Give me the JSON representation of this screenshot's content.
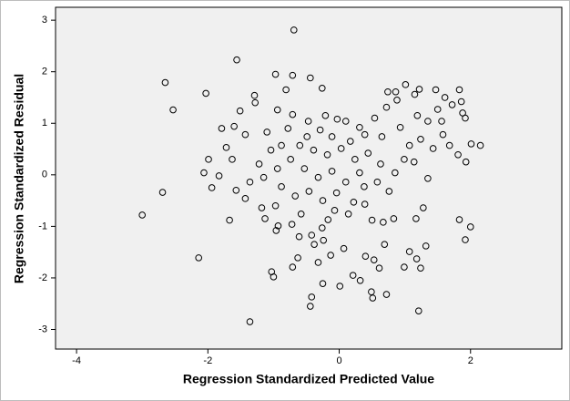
{
  "chart_data": {
    "type": "scatter",
    "x_label": "Regression Standardized Predicted Value",
    "y_label": "Regression Standardized Residual",
    "xlim": [
      -4.32,
      3.39
    ],
    "ylim": [
      -3.38,
      3.25
    ],
    "xticks": [
      -4,
      -2,
      0,
      2
    ],
    "yticks": [
      -3,
      -2,
      -1,
      0,
      1,
      2,
      3
    ],
    "grid": false,
    "background": "#f0f0f0",
    "color": "#000000",
    "x": [
      -0.69,
      -1.56,
      -2.65,
      -2.53,
      -2.03,
      -3.0,
      -2.69,
      -2.14,
      -1.36,
      -0.97,
      -0.71,
      -0.44,
      -0.26,
      -0.81,
      1.01,
      1.22,
      1.47,
      1.83,
      0.86,
      1.86,
      1.61,
      1.72,
      1.5,
      1.88,
      1.15,
      1.35,
      1.56,
      1.92,
      1.19,
      0.74,
      0.88,
      -1.29,
      -1.28,
      -1.51,
      -1.79,
      -0.94,
      -0.71,
      -0.47,
      -0.21,
      -0.03,
      0.1,
      0.54,
      0.72,
      0.39,
      -0.29,
      -0.78,
      -1.1,
      -1.43,
      -1.6,
      -1.72,
      1.58,
      1.68,
      1.24,
      1.43,
      1.81,
      2.01,
      2.15,
      1.93,
      1.14,
      1.35,
      0.99,
      0.85,
      1.17,
      1.28,
      1.83,
      2.0,
      1.92,
      1.32,
      1.07,
      1.18,
      1.24,
      0.69,
      0.99,
      0.53,
      0.07,
      0.21,
      0.4,
      0.61,
      0.32,
      0.49,
      0.51,
      1.21,
      0.72,
      0.83,
      -0.42,
      -0.44,
      -0.25,
      -0.38,
      -0.13,
      0.01,
      -0.32,
      -0.63,
      -0.71,
      -1.03,
      -1.0,
      -1.67,
      -1.13,
      -0.93,
      -0.72,
      -0.58,
      -0.61,
      -0.42,
      -0.24,
      -0.26,
      -0.17,
      -0.07,
      0.14,
      0.22,
      0.39,
      0.5,
      0.67,
      -0.96,
      -0.97,
      -1.18,
      -1.43,
      -1.94,
      -1.83,
      -1.57,
      -1.63,
      -0.6,
      -0.39,
      -0.18,
      0.03,
      0.24,
      0.44,
      0.63,
      0.31,
      0.1,
      -0.11,
      -0.32,
      -0.53,
      -0.74,
      -0.94,
      -1.15,
      -0.88,
      -0.67,
      -0.46,
      -0.25,
      -0.04,
      0.38,
      0.58,
      0.76,
      -1.04,
      -1.22,
      -1.36,
      -0.49,
      0.17,
      0.65,
      0.93,
      1.07,
      0.31,
      -0.11,
      -0.88,
      -1.99,
      -2.06
    ],
    "values": [
      2.81,
      2.23,
      1.79,
      1.26,
      1.58,
      -0.78,
      -0.34,
      -1.61,
      -2.85,
      1.95,
      1.93,
      1.88,
      1.68,
      1.65,
      1.75,
      1.66,
      1.65,
      1.65,
      1.61,
      1.42,
      1.5,
      1.36,
      1.27,
      1.2,
      1.56,
      1.04,
      1.04,
      1.1,
      1.15,
      1.61,
      1.45,
      1.54,
      1.4,
      1.24,
      0.9,
      1.26,
      1.17,
      1.04,
      1.15,
      1.08,
      1.04,
      1.1,
      1.31,
      0.78,
      0.87,
      0.9,
      0.83,
      0.78,
      0.94,
      0.53,
      0.78,
      0.57,
      0.69,
      0.51,
      0.39,
      0.6,
      0.57,
      0.25,
      0.25,
      -0.07,
      0.3,
      0.04,
      -0.85,
      -0.64,
      -0.87,
      -1.01,
      -1.26,
      -1.38,
      -1.49,
      -1.63,
      -1.81,
      -1.35,
      -1.79,
      -1.65,
      -1.43,
      -1.95,
      -1.58,
      -1.81,
      -2.05,
      -2.27,
      -2.39,
      -2.64,
      -2.32,
      -0.85,
      -2.37,
      -2.55,
      -2.11,
      -1.35,
      -1.56,
      -2.16,
      -1.7,
      -1.61,
      -1.79,
      -1.88,
      -1.98,
      -0.88,
      -0.85,
      -0.99,
      -0.96,
      -0.76,
      -1.2,
      -1.17,
      -1.27,
      -1.03,
      -0.87,
      -0.69,
      -0.76,
      -0.53,
      -0.57,
      -0.88,
      -0.92,
      -1.08,
      -0.6,
      -0.64,
      -0.46,
      -0.25,
      -0.02,
      -0.3,
      0.3,
      0.57,
      0.48,
      0.39,
      0.51,
      0.3,
      0.42,
      0.21,
      0.04,
      -0.14,
      0.07,
      -0.05,
      0.12,
      0.3,
      0.12,
      -0.05,
      -0.23,
      -0.41,
      -0.32,
      -0.5,
      -0.35,
      -0.23,
      -0.14,
      -0.32,
      0.48,
      0.21,
      -0.14,
      0.74,
      0.65,
      0.74,
      0.92,
      0.57,
      0.92,
      0.74,
      0.57,
      0.3,
      0.04
    ]
  }
}
